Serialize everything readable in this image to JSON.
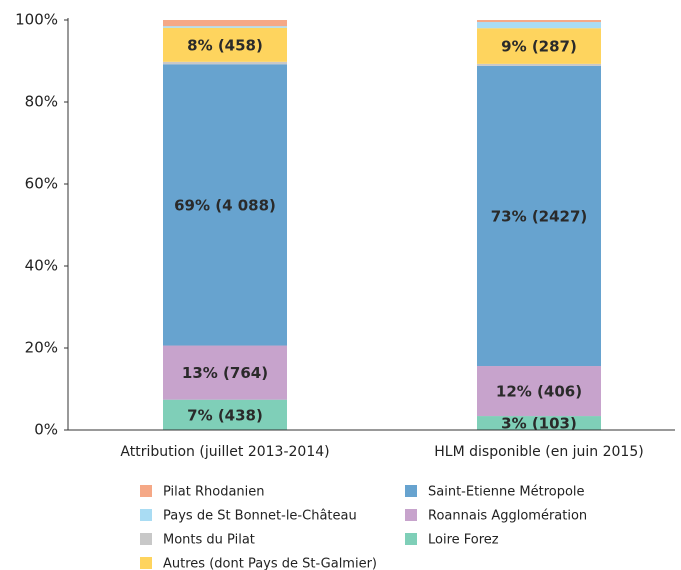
{
  "chart_data": {
    "type": "stacked_bar",
    "categories": [
      "Attribution (juillet 2013-2014)",
      "HLM disponible (en juin 2015)"
    ],
    "series": [
      {
        "name": "Loire Forez",
        "color": "#7fcfb8",
        "values": [
          7.4,
          3.4
        ],
        "value_labels": [
          "7% (438)",
          "3% (103)"
        ]
      },
      {
        "name": "Roannais Agglomération",
        "color": "#c7a3cc",
        "values": [
          13.2,
          12.2
        ],
        "value_labels": [
          "13% (764)",
          "12% (406)"
        ]
      },
      {
        "name": "Saint-Etienne Métropole",
        "color": "#67a3cf",
        "values": [
          68.6,
          73.2
        ],
        "value_labels": [
          "69% (4 088)",
          "73% (2427)"
        ]
      },
      {
        "name": "Monts du Pilat",
        "color": "#c8c8c8",
        "values": [
          0.6,
          0.5
        ],
        "value_labels": [
          null,
          null
        ]
      },
      {
        "name": "Autres (dont Pays de St-Galmier)",
        "color": "#fed45e",
        "values": [
          8.3,
          8.7
        ],
        "value_labels": [
          "8% (458)",
          "9% (287)"
        ]
      },
      {
        "name": "Pays de St Bonnet-le-Château",
        "color": "#a9dcf3",
        "values": [
          0.4,
          1.5
        ],
        "value_labels": [
          null,
          null
        ]
      },
      {
        "name": "Pilat Rhodanien",
        "color": "#f5a886",
        "values": [
          1.5,
          0.5
        ],
        "value_labels": [
          null,
          null
        ]
      }
    ],
    "ylim": [
      0,
      100
    ],
    "yticks": [
      {
        "value": 0,
        "label": "0%"
      },
      {
        "value": 20,
        "label": "20%"
      },
      {
        "value": 40,
        "label": "40%"
      },
      {
        "value": 60,
        "label": "60%"
      },
      {
        "value": 80,
        "label": "80%"
      },
      {
        "value": 100,
        "label": "100%"
      }
    ],
    "grid": false
  }
}
